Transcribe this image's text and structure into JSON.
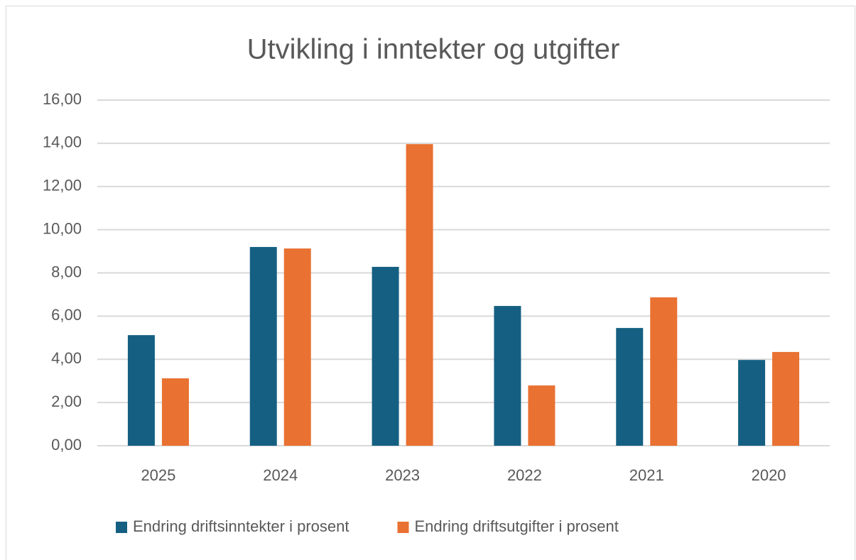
{
  "chart_data": {
    "type": "bar",
    "title": "Utvikling i inntekter og utgifter",
    "categories": [
      "2025",
      "2024",
      "2023",
      "2022",
      "2021",
      "2020"
    ],
    "series": [
      {
        "name": "Endring driftsinntekter i prosent",
        "color": "#156082",
        "values": [
          5.12,
          9.2,
          8.28,
          6.47,
          5.45,
          3.97
        ]
      },
      {
        "name": "Endring driftsutgifter i prosent",
        "color": "#e97132",
        "values": [
          3.12,
          9.13,
          13.96,
          2.79,
          6.87,
          4.34
        ]
      }
    ],
    "ylim": [
      0,
      16
    ],
    "yticks": [
      {
        "value": 0,
        "label": "0,00"
      },
      {
        "value": 2,
        "label": "2,00"
      },
      {
        "value": 4,
        "label": "4,00"
      },
      {
        "value": 6,
        "label": "6,00"
      },
      {
        "value": 8,
        "label": "8,00"
      },
      {
        "value": 10,
        "label": "10,00"
      },
      {
        "value": 12,
        "label": "12,00"
      },
      {
        "value": 14,
        "label": "14,00"
      },
      {
        "value": 16,
        "label": "16,00"
      }
    ],
    "grid": true,
    "legend": "bottom"
  }
}
